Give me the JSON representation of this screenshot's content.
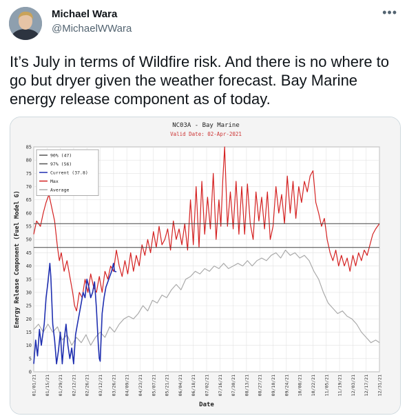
{
  "tweet": {
    "author_name": "Michael Wara",
    "author_handle": "@MichaelWWara",
    "more_icon": "more-horizontal-icon",
    "text": "It’s July in terms of Wildfire risk. And there is no where to go but dryer given the weather forecast. Bay Marine energy release component as of today."
  },
  "chart_data": {
    "type": "line",
    "title": "NC03A - Bay Marine",
    "subtitle": "Valid Date: 02-Apr-2021",
    "xlabel": "Date",
    "ylabel": "Energy Release Component (Fuel Model G)",
    "ylim": [
      0,
      85
    ],
    "yticks": [
      0,
      5,
      10,
      15,
      20,
      25,
      30,
      35,
      40,
      45,
      50,
      55,
      60,
      65,
      70,
      75,
      80,
      85
    ],
    "xlim": [
      1,
      365
    ],
    "xticks": [
      {
        "day": 1,
        "label": "01/01/21"
      },
      {
        "day": 15,
        "label": "01/15/21"
      },
      {
        "day": 29,
        "label": "01/29/21"
      },
      {
        "day": 43,
        "label": "02/12/21"
      },
      {
        "day": 57,
        "label": "02/26/21"
      },
      {
        "day": 71,
        "label": "03/12/21"
      },
      {
        "day": 85,
        "label": "03/26/21"
      },
      {
        "day": 99,
        "label": "04/09/21"
      },
      {
        "day": 113,
        "label": "04/23/21"
      },
      {
        "day": 127,
        "label": "05/07/21"
      },
      {
        "day": 141,
        "label": "05/21/21"
      },
      {
        "day": 155,
        "label": "06/04/21"
      },
      {
        "day": 169,
        "label": "06/18/21"
      },
      {
        "day": 183,
        "label": "07/02/21"
      },
      {
        "day": 197,
        "label": "07/16/21"
      },
      {
        "day": 211,
        "label": "07/30/21"
      },
      {
        "day": 225,
        "label": "08/13/21"
      },
      {
        "day": 239,
        "label": "08/27/21"
      },
      {
        "day": 253,
        "label": "09/10/21"
      },
      {
        "day": 267,
        "label": "09/24/21"
      },
      {
        "day": 281,
        "label": "10/08/21"
      },
      {
        "day": 295,
        "label": "10/22/21"
      },
      {
        "day": 309,
        "label": "11/05/21"
      },
      {
        "day": 323,
        "label": "11/19/21"
      },
      {
        "day": 337,
        "label": "12/03/21"
      },
      {
        "day": 351,
        "label": "12/17/21"
      },
      {
        "day": 365,
        "label": "12/31/21"
      }
    ],
    "grid": true,
    "legend_placement": "top-left",
    "legend": [
      {
        "label": "90% (47)",
        "color": "#555555"
      },
      {
        "label": "97% (56)",
        "color": "#555555"
      },
      {
        "label": "Current (37.8)",
        "color": "#1f2fb0"
      },
      {
        "label": "Max",
        "color": "#d42020"
      },
      {
        "label": "Average",
        "color": "#aaaaaa"
      }
    ],
    "percentile_lines": [
      {
        "name": "90% (47)",
        "value": 47
      },
      {
        "name": "97% (56)",
        "value": 56
      }
    ],
    "series": [
      {
        "name": "Max",
        "color": "#d42020",
        "points": [
          [
            1,
            52
          ],
          [
            4,
            57
          ],
          [
            8,
            55
          ],
          [
            11,
            60
          ],
          [
            14,
            64
          ],
          [
            17,
            67
          ],
          [
            20,
            62
          ],
          [
            23,
            57
          ],
          [
            26,
            47
          ],
          [
            28,
            42
          ],
          [
            30,
            45
          ],
          [
            33,
            38
          ],
          [
            36,
            42
          ],
          [
            39,
            36
          ],
          [
            42,
            30
          ],
          [
            44,
            25
          ],
          [
            46,
            23
          ],
          [
            49,
            30
          ],
          [
            52,
            28
          ],
          [
            55,
            35
          ],
          [
            58,
            30
          ],
          [
            61,
            37
          ],
          [
            64,
            32
          ],
          [
            67,
            30
          ],
          [
            70,
            36
          ],
          [
            73,
            30
          ],
          [
            76,
            38
          ],
          [
            79,
            35
          ],
          [
            82,
            40
          ],
          [
            85,
            38
          ],
          [
            88,
            46
          ],
          [
            91,
            40
          ],
          [
            94,
            36
          ],
          [
            97,
            42
          ],
          [
            100,
            37
          ],
          [
            103,
            45
          ],
          [
            106,
            38
          ],
          [
            109,
            44
          ],
          [
            112,
            40
          ],
          [
            115,
            48
          ],
          [
            118,
            44
          ],
          [
            121,
            50
          ],
          [
            124,
            45
          ],
          [
            127,
            53
          ],
          [
            130,
            47
          ],
          [
            133,
            55
          ],
          [
            136,
            48
          ],
          [
            139,
            50
          ],
          [
            142,
            54
          ],
          [
            145,
            46
          ],
          [
            148,
            57
          ],
          [
            151,
            50
          ],
          [
            154,
            54
          ],
          [
            157,
            48
          ],
          [
            160,
            56
          ],
          [
            163,
            46
          ],
          [
            166,
            65
          ],
          [
            169,
            48
          ],
          [
            172,
            70
          ],
          [
            175,
            47
          ],
          [
            178,
            72
          ],
          [
            181,
            52
          ],
          [
            184,
            66
          ],
          [
            187,
            54
          ],
          [
            190,
            75
          ],
          [
            193,
            50
          ],
          [
            196,
            65
          ],
          [
            198,
            55
          ],
          [
            200,
            72
          ],
          [
            202,
            85
          ],
          [
            205,
            55
          ],
          [
            208,
            68
          ],
          [
            211,
            54
          ],
          [
            214,
            72
          ],
          [
            217,
            52
          ],
          [
            220,
            70
          ],
          [
            223,
            52
          ],
          [
            226,
            71
          ],
          [
            229,
            56
          ],
          [
            232,
            50
          ],
          [
            235,
            68
          ],
          [
            238,
            57
          ],
          [
            241,
            66
          ],
          [
            244,
            54
          ],
          [
            247,
            68
          ],
          [
            250,
            50
          ],
          [
            253,
            55
          ],
          [
            256,
            70
          ],
          [
            259,
            60
          ],
          [
            262,
            67
          ],
          [
            265,
            56
          ],
          [
            268,
            74
          ],
          [
            271,
            60
          ],
          [
            274,
            72
          ],
          [
            277,
            58
          ],
          [
            280,
            70
          ],
          [
            283,
            64
          ],
          [
            286,
            72
          ],
          [
            289,
            68
          ],
          [
            292,
            74
          ],
          [
            295,
            76
          ],
          [
            298,
            64
          ],
          [
            301,
            60
          ],
          [
            304,
            55
          ],
          [
            307,
            58
          ],
          [
            310,
            50
          ],
          [
            313,
            45
          ],
          [
            316,
            42
          ],
          [
            319,
            46
          ],
          [
            322,
            40
          ],
          [
            325,
            44
          ],
          [
            328,
            40
          ],
          [
            331,
            43
          ],
          [
            334,
            38
          ],
          [
            337,
            44
          ],
          [
            340,
            40
          ],
          [
            343,
            45
          ],
          [
            346,
            42
          ],
          [
            349,
            46
          ],
          [
            352,
            44
          ],
          [
            355,
            48
          ],
          [
            358,
            52
          ],
          [
            361,
            54
          ],
          [
            365,
            56
          ]
        ]
      },
      {
        "name": "Average",
        "color": "#aaaaaa",
        "points": [
          [
            1,
            16
          ],
          [
            6,
            18
          ],
          [
            11,
            15
          ],
          [
            16,
            18
          ],
          [
            21,
            15
          ],
          [
            26,
            17
          ],
          [
            31,
            12
          ],
          [
            36,
            14
          ],
          [
            41,
            10
          ],
          [
            46,
            13
          ],
          [
            51,
            11
          ],
          [
            56,
            14
          ],
          [
            61,
            10
          ],
          [
            66,
            13
          ],
          [
            71,
            15
          ],
          [
            76,
            13
          ],
          [
            81,
            17
          ],
          [
            86,
            15
          ],
          [
            91,
            18
          ],
          [
            96,
            20
          ],
          [
            101,
            21
          ],
          [
            106,
            20
          ],
          [
            111,
            22
          ],
          [
            116,
            25
          ],
          [
            121,
            23
          ],
          [
            126,
            27
          ],
          [
            131,
            26
          ],
          [
            136,
            29
          ],
          [
            141,
            28
          ],
          [
            146,
            31
          ],
          [
            151,
            33
          ],
          [
            156,
            31
          ],
          [
            161,
            35
          ],
          [
            166,
            36
          ],
          [
            171,
            38
          ],
          [
            176,
            37
          ],
          [
            181,
            39
          ],
          [
            186,
            38
          ],
          [
            191,
            40
          ],
          [
            196,
            39
          ],
          [
            201,
            41
          ],
          [
            206,
            39
          ],
          [
            211,
            40
          ],
          [
            216,
            41
          ],
          [
            221,
            40
          ],
          [
            226,
            42
          ],
          [
            231,
            40
          ],
          [
            236,
            42
          ],
          [
            241,
            43
          ],
          [
            246,
            42
          ],
          [
            251,
            44
          ],
          [
            256,
            45
          ],
          [
            261,
            43
          ],
          [
            266,
            46
          ],
          [
            271,
            44
          ],
          [
            276,
            45
          ],
          [
            281,
            43
          ],
          [
            286,
            44
          ],
          [
            291,
            42
          ],
          [
            296,
            38
          ],
          [
            301,
            35
          ],
          [
            306,
            30
          ],
          [
            311,
            26
          ],
          [
            316,
            24
          ],
          [
            321,
            22
          ],
          [
            326,
            23
          ],
          [
            331,
            21
          ],
          [
            336,
            20
          ],
          [
            341,
            18
          ],
          [
            346,
            15
          ],
          [
            351,
            13
          ],
          [
            356,
            11
          ],
          [
            361,
            12
          ],
          [
            365,
            11
          ]
        ]
      },
      {
        "name": "Current (37.8)",
        "color": "#1f2fb0",
        "points": [
          [
            1,
            3
          ],
          [
            3,
            12
          ],
          [
            5,
            6
          ],
          [
            7,
            16
          ],
          [
            9,
            10
          ],
          [
            12,
            18
          ],
          [
            14,
            28
          ],
          [
            16,
            34
          ],
          [
            18,
            41
          ],
          [
            19,
            36
          ],
          [
            21,
            18
          ],
          [
            23,
            12
          ],
          [
            25,
            3
          ],
          [
            27,
            8
          ],
          [
            29,
            15
          ],
          [
            31,
            3
          ],
          [
            33,
            12
          ],
          [
            35,
            18
          ],
          [
            37,
            10
          ],
          [
            39,
            5
          ],
          [
            41,
            9
          ],
          [
            43,
            3
          ],
          [
            45,
            14
          ],
          [
            47,
            18
          ],
          [
            49,
            22
          ],
          [
            51,
            26
          ],
          [
            53,
            30
          ],
          [
            55,
            28
          ],
          [
            57,
            35
          ],
          [
            59,
            32
          ],
          [
            61,
            28
          ],
          [
            63,
            30
          ],
          [
            65,
            34
          ],
          [
            67,
            24
          ],
          [
            69,
            10
          ],
          [
            70,
            5
          ],
          [
            71,
            4
          ],
          [
            73,
            22
          ],
          [
            75,
            28
          ],
          [
            77,
            32
          ],
          [
            79,
            34
          ],
          [
            81,
            36
          ],
          [
            83,
            38
          ],
          [
            85,
            41
          ],
          [
            86,
            38
          ],
          [
            88,
            37.8
          ]
        ]
      }
    ]
  }
}
